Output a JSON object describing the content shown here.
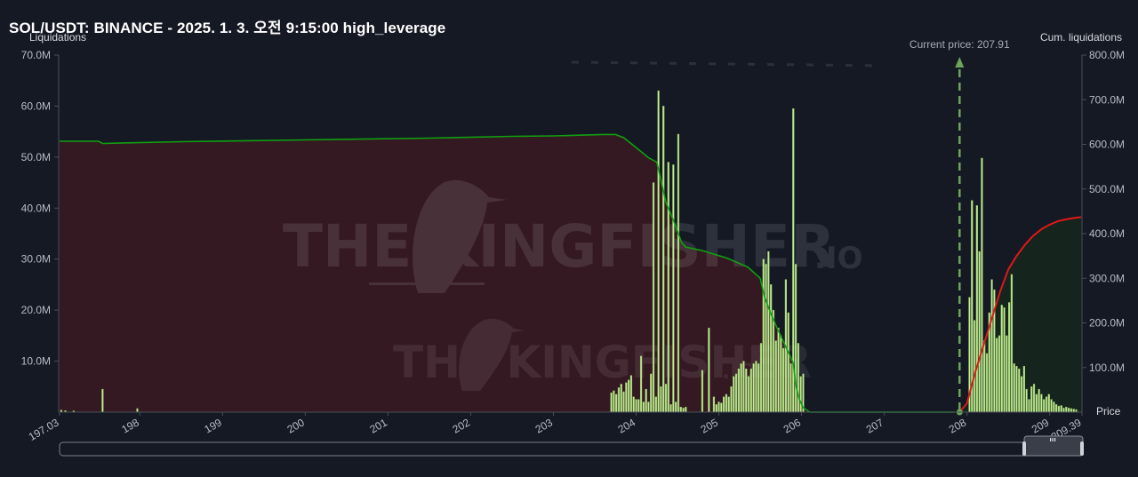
{
  "title": "SOL/USDT: BINANCE - 2025. 1. 3. 오전 9:15:00 high_leverage",
  "watermark": {
    "main": "THE KINGFISHER",
    "suffix": ".IO"
  },
  "scrollbar": {
    "handle_icon": "grip-icon"
  },
  "colors": {
    "bar": "#c6ec9a",
    "bar_stroke": "#8fbf63",
    "cum_green": "#10a010",
    "cum_red": "#e01818",
    "short_fill": "#3a1a22",
    "long_fill": "#15261d",
    "price_marker": "#6fa35a",
    "background": "#151924"
  },
  "chart_data": {
    "type": "bar",
    "title": "SOL/USDT: BINANCE - 2025. 1. 3. 오전 9:15:00 high_leverage",
    "ylabel": "Liquidations",
    "y2label": "Cum. liquidations",
    "xlabel": "Price",
    "xlim": [
      197.03,
      209.39
    ],
    "ylim": [
      0,
      70000000
    ],
    "y2lim": [
      0,
      800000000
    ],
    "x_ticks": [
      "197.03",
      "198",
      "199",
      "200",
      "201",
      "202",
      "203",
      "204",
      "205",
      "206",
      "207",
      "208",
      "209",
      "209.39"
    ],
    "y_ticks": [
      "70.0M",
      "60.0M",
      "50.0M",
      "40.0M",
      "30.0M",
      "20.0M",
      "10.0M"
    ],
    "y2_ticks": [
      "800.0M",
      "700.0M",
      "600.0M",
      "500.0M",
      "400.0M",
      "300.0M",
      "200.0M",
      "100.0M"
    ],
    "current_price": {
      "label": "Current price: 207.91",
      "value": 207.91
    },
    "grid": false,
    "bars": [
      [
        197.05,
        0.4
      ],
      [
        197.1,
        0.3
      ],
      [
        197.2,
        0.25
      ],
      [
        197.55,
        4.5
      ],
      [
        197.97,
        0.7
      ],
      [
        203.7,
        3.8
      ],
      [
        203.73,
        4.2
      ],
      [
        203.76,
        3.5
      ],
      [
        203.79,
        4.8
      ],
      [
        203.82,
        5.5
      ],
      [
        203.85,
        4.0
      ],
      [
        203.88,
        5.8
      ],
      [
        203.91,
        6.3
      ],
      [
        203.94,
        7.2
      ],
      [
        203.97,
        3.0
      ],
      [
        204.0,
        2.5
      ],
      [
        204.03,
        2.5
      ],
      [
        204.06,
        11.0
      ],
      [
        204.09,
        2.0
      ],
      [
        204.12,
        4.5
      ],
      [
        204.15,
        2.0
      ],
      [
        204.18,
        7.5
      ],
      [
        204.21,
        45.0
      ],
      [
        204.24,
        3.0
      ],
      [
        204.27,
        63.0
      ],
      [
        204.3,
        5.0
      ],
      [
        204.33,
        60.0
      ],
      [
        204.36,
        5.5
      ],
      [
        204.39,
        49.0
      ],
      [
        204.42,
        1.5
      ],
      [
        204.45,
        48.5
      ],
      [
        204.48,
        2.0
      ],
      [
        204.51,
        54.5
      ],
      [
        204.54,
        1.0
      ],
      [
        204.57,
        0.8
      ],
      [
        204.6,
        1.0
      ],
      [
        204.8,
        8.2
      ],
      [
        204.88,
        16.5
      ],
      [
        204.94,
        3.0
      ],
      [
        204.97,
        1.5
      ],
      [
        205.0,
        2.0
      ],
      [
        205.03,
        1.8
      ],
      [
        205.06,
        3.0
      ],
      [
        205.09,
        3.5
      ],
      [
        205.12,
        3.0
      ],
      [
        205.15,
        5.0
      ],
      [
        205.18,
        7.0
      ],
      [
        205.21,
        7.5
      ],
      [
        205.24,
        8.5
      ],
      [
        205.27,
        9.5
      ],
      [
        205.3,
        10.0
      ],
      [
        205.33,
        8.5
      ],
      [
        205.36,
        7.0
      ],
      [
        205.39,
        8.5
      ],
      [
        205.42,
        9.5
      ],
      [
        205.45,
        10.0
      ],
      [
        205.48,
        9.5
      ],
      [
        205.51,
        13.5
      ],
      [
        205.54,
        30.0
      ],
      [
        205.57,
        29.0
      ],
      [
        205.6,
        31.5
      ],
      [
        205.63,
        25.0
      ],
      [
        205.66,
        20.0
      ],
      [
        205.69,
        14.0
      ],
      [
        205.72,
        16.5
      ],
      [
        205.75,
        15.0
      ],
      [
        205.78,
        12.5
      ],
      [
        205.81,
        26.0
      ],
      [
        205.84,
        19.5
      ],
      [
        205.87,
        9.5
      ],
      [
        205.9,
        59.5
      ],
      [
        205.93,
        29.0
      ],
      [
        205.96,
        13.5
      ],
      [
        205.99,
        7.0
      ],
      [
        206.02,
        7.5
      ],
      [
        208.03,
        22.5
      ],
      [
        208.06,
        41.5
      ],
      [
        208.09,
        18.0
      ],
      [
        208.12,
        40.5
      ],
      [
        208.15,
        31.5
      ],
      [
        208.18,
        49.8
      ],
      [
        208.21,
        14.0
      ],
      [
        208.24,
        11.5
      ],
      [
        208.27,
        19.5
      ],
      [
        208.3,
        26.0
      ],
      [
        208.33,
        24.0
      ],
      [
        208.36,
        14.5
      ],
      [
        208.39,
        15.0
      ],
      [
        208.42,
        21.0
      ],
      [
        208.45,
        20.5
      ],
      [
        208.48,
        15.0
      ],
      [
        208.51,
        21.5
      ],
      [
        208.54,
        27.0
      ],
      [
        208.57,
        9.5
      ],
      [
        208.6,
        9.0
      ],
      [
        208.63,
        8.5
      ],
      [
        208.66,
        7.0
      ],
      [
        208.69,
        9.0
      ],
      [
        208.72,
        4.5
      ],
      [
        208.75,
        2.5
      ],
      [
        208.78,
        5.0
      ],
      [
        208.81,
        5.5
      ],
      [
        208.84,
        3.5
      ],
      [
        208.87,
        4.5
      ],
      [
        208.9,
        3.5
      ],
      [
        208.93,
        2.5
      ],
      [
        208.96,
        3.0
      ],
      [
        208.99,
        3.5
      ],
      [
        209.02,
        2.5
      ],
      [
        209.05,
        2.0
      ],
      [
        209.08,
        1.5
      ],
      [
        209.11,
        1.2
      ],
      [
        209.14,
        1.3
      ],
      [
        209.17,
        0.8
      ],
      [
        209.2,
        1.0
      ],
      [
        209.23,
        0.8
      ],
      [
        209.26,
        0.7
      ],
      [
        209.29,
        0.6
      ],
      [
        209.32,
        0.5
      ]
    ],
    "cum_short": [
      [
        197.03,
        607
      ],
      [
        197.5,
        607
      ],
      [
        197.55,
        602
      ],
      [
        198.5,
        606
      ],
      [
        200.0,
        610
      ],
      [
        201.5,
        614
      ],
      [
        202.5,
        618
      ],
      [
        203.0,
        619
      ],
      [
        203.6,
        622
      ],
      [
        203.75,
        622
      ],
      [
        203.85,
        615
      ],
      [
        203.95,
        600
      ],
      [
        204.05,
        585
      ],
      [
        204.15,
        570
      ],
      [
        204.25,
        560
      ],
      [
        204.3,
        520
      ],
      [
        204.36,
        470
      ],
      [
        204.45,
        430
      ],
      [
        204.55,
        380
      ],
      [
        204.6,
        370
      ],
      [
        204.8,
        362
      ],
      [
        205.1,
        345
      ],
      [
        205.35,
        325
      ],
      [
        205.5,
        300
      ],
      [
        205.55,
        260
      ],
      [
        205.62,
        225
      ],
      [
        205.7,
        190
      ],
      [
        205.8,
        150
      ],
      [
        205.9,
        110
      ],
      [
        205.93,
        60
      ],
      [
        205.97,
        30
      ],
      [
        206.02,
        10
      ],
      [
        206.1,
        0
      ],
      [
        207.85,
        0
      ]
    ],
    "cum_long": [
      [
        207.91,
        0
      ],
      [
        208.0,
        20
      ],
      [
        208.1,
        90
      ],
      [
        208.2,
        150
      ],
      [
        208.3,
        210
      ],
      [
        208.4,
        270
      ],
      [
        208.5,
        320
      ],
      [
        208.6,
        350
      ],
      [
        208.7,
        375
      ],
      [
        208.8,
        395
      ],
      [
        208.9,
        410
      ],
      [
        209.0,
        420
      ],
      [
        209.1,
        428
      ],
      [
        209.2,
        432
      ],
      [
        209.3,
        435
      ],
      [
        209.38,
        437
      ]
    ]
  }
}
